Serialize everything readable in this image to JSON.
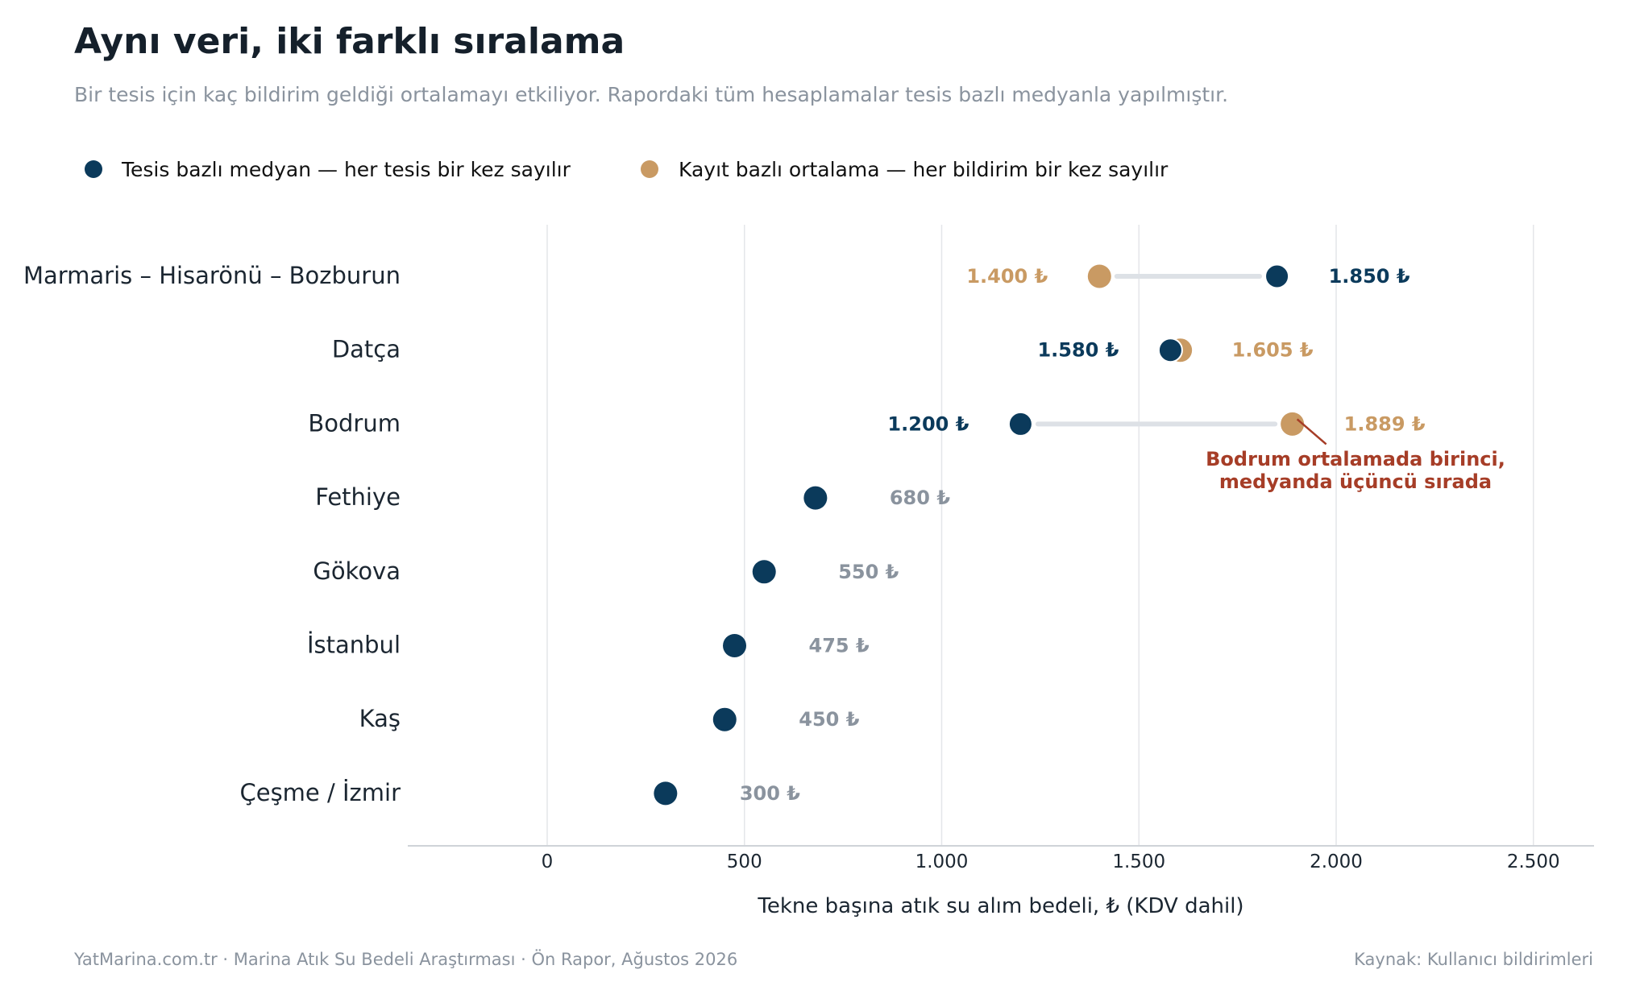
{
  "header": {
    "title": "Aynı veri, iki farklı sıralama",
    "subtitle": "Bir tesis için kaç bildirim geldiği ortalamayı etkiliyor. Rapordaki tüm hesaplamalar tesis bazlı medyanla yapılmıştır."
  },
  "legend": {
    "median_label": "Tesis bazlı medyan — her tesis bir kez sayılır",
    "mean_label": "Kayıt bazlı ortalama — her bildirim bir kez sayılır"
  },
  "colors": {
    "median": "#0b3a5b",
    "mean": "#c99a63",
    "single_label": "#8a939e",
    "connector": "#dde1e6",
    "annotation": "#a63d27",
    "grid": "#e4e6e9"
  },
  "chart_data": {
    "type": "dumbbell",
    "xlabel": "Tekne başına atık su alım bedeli, ₺ (KDV dahil)",
    "xlim": [
      -350,
      2650
    ],
    "xticks": [
      0,
      500,
      1000,
      1500,
      2000,
      2500
    ],
    "xtick_labels": [
      "0",
      "500",
      "1.000",
      "1.500",
      "2.000",
      "2.500"
    ],
    "grid": "vertical",
    "legend_position": "top-left",
    "series": [
      {
        "name": "Tesis bazlı medyan — her tesis bir kez sayılır",
        "key": "median"
      },
      {
        "name": "Kayıt bazlı ortalama — her bildirim bir kez sayılır",
        "key": "mean"
      }
    ],
    "rows": [
      {
        "category": "Marmaris – Hisarönü – Bozburun",
        "median": 1850,
        "mean": 1400,
        "median_label": "1.850 ₺",
        "mean_label": "1.400 ₺"
      },
      {
        "category": "Datça",
        "median": 1580,
        "mean": 1605,
        "median_label": "1.580 ₺",
        "mean_label": "1.605 ₺"
      },
      {
        "category": "Bodrum",
        "median": 1200,
        "mean": 1889,
        "median_label": "1.200 ₺",
        "mean_label": "1.889 ₺"
      },
      {
        "category": "Fethiye",
        "median": 680,
        "mean": null,
        "median_label": "680 ₺"
      },
      {
        "category": "Gökova",
        "median": 550,
        "mean": null,
        "median_label": "550 ₺"
      },
      {
        "category": "İstanbul",
        "median": 475,
        "mean": null,
        "median_label": "475 ₺"
      },
      {
        "category": "Kaş",
        "median": 450,
        "mean": null,
        "median_label": "450 ₺"
      },
      {
        "category": "Çeşme / İzmir",
        "median": 300,
        "mean": null,
        "median_label": "300 ₺"
      }
    ],
    "annotation": {
      "lines": [
        "Bodrum ortalamada birinci,",
        "medyanda üçüncü sırada"
      ],
      "target_category": "Bodrum",
      "target_value": 1889
    }
  },
  "footer": {
    "left": "YatMarina.com.tr  ·  Marina Atık Su Bedeli Araştırması  ·  Ön Rapor, Ağustos 2026",
    "right": "Kaynak: Kullanıcı bildirimleri"
  }
}
